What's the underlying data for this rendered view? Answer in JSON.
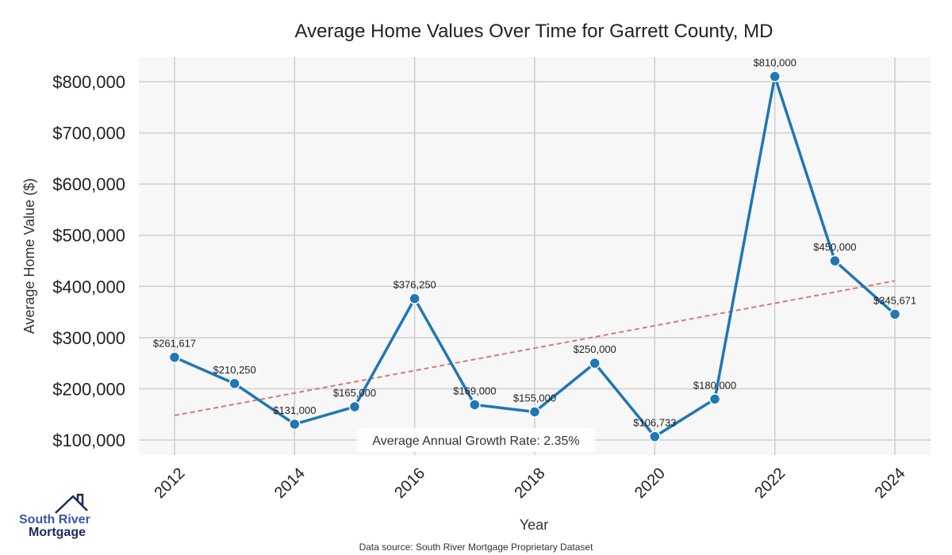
{
  "chart_data": {
    "type": "line",
    "title": "Average Home Values Over Time for Garrett County, MD",
    "xlabel": "Year",
    "ylabel": "Average Home Value ($)",
    "x": [
      2012,
      2013,
      2014,
      2015,
      2016,
      2017,
      2018,
      2019,
      2020,
      2021,
      2022,
      2023,
      2024
    ],
    "series": [
      {
        "name": "Average Home Value",
        "color": "#1f77b4",
        "values": [
          261617,
          210250,
          131000,
          165000,
          376250,
          169000,
          155000,
          250000,
          106733,
          180000,
          810000,
          450000,
          345671
        ],
        "labels": [
          "$261,617",
          "$210,250",
          "$131,000",
          "$165,000",
          "$376,250",
          "$169,000",
          "$155,000",
          "$250,000",
          "$106,733",
          "$180,000",
          "$810,000",
          "$450,000",
          "$345,671"
        ]
      }
    ],
    "trendline": {
      "color": "#d9777a",
      "start": [
        2012,
        148000
      ],
      "end": [
        2024,
        411000
      ]
    },
    "xticks": [
      2012,
      2014,
      2016,
      2018,
      2020,
      2022,
      2024
    ],
    "xtick_labels": [
      "2012",
      "2014",
      "2016",
      "2018",
      "2020",
      "2022",
      "2024"
    ],
    "yticks": [
      100000,
      200000,
      300000,
      400000,
      500000,
      600000,
      700000,
      800000
    ],
    "ytick_labels": [
      "$100,000",
      "$200,000",
      "$300,000",
      "$400,000",
      "$500,000",
      "$600,000",
      "$700,000",
      "$800,000"
    ],
    "xlim": [
      2011.4,
      2024.6
    ],
    "ylim": [
      72000,
      845000
    ],
    "grid": true,
    "annotation": "Average Annual Growth Rate: 2.35%"
  },
  "footer": {
    "source": "Data source: South River Mortgage Proprietary Dataset"
  },
  "logo": {
    "line1": "South River",
    "line2": "Mortgage",
    "color1": "#3a55a8",
    "color2": "#1e2a5e"
  }
}
